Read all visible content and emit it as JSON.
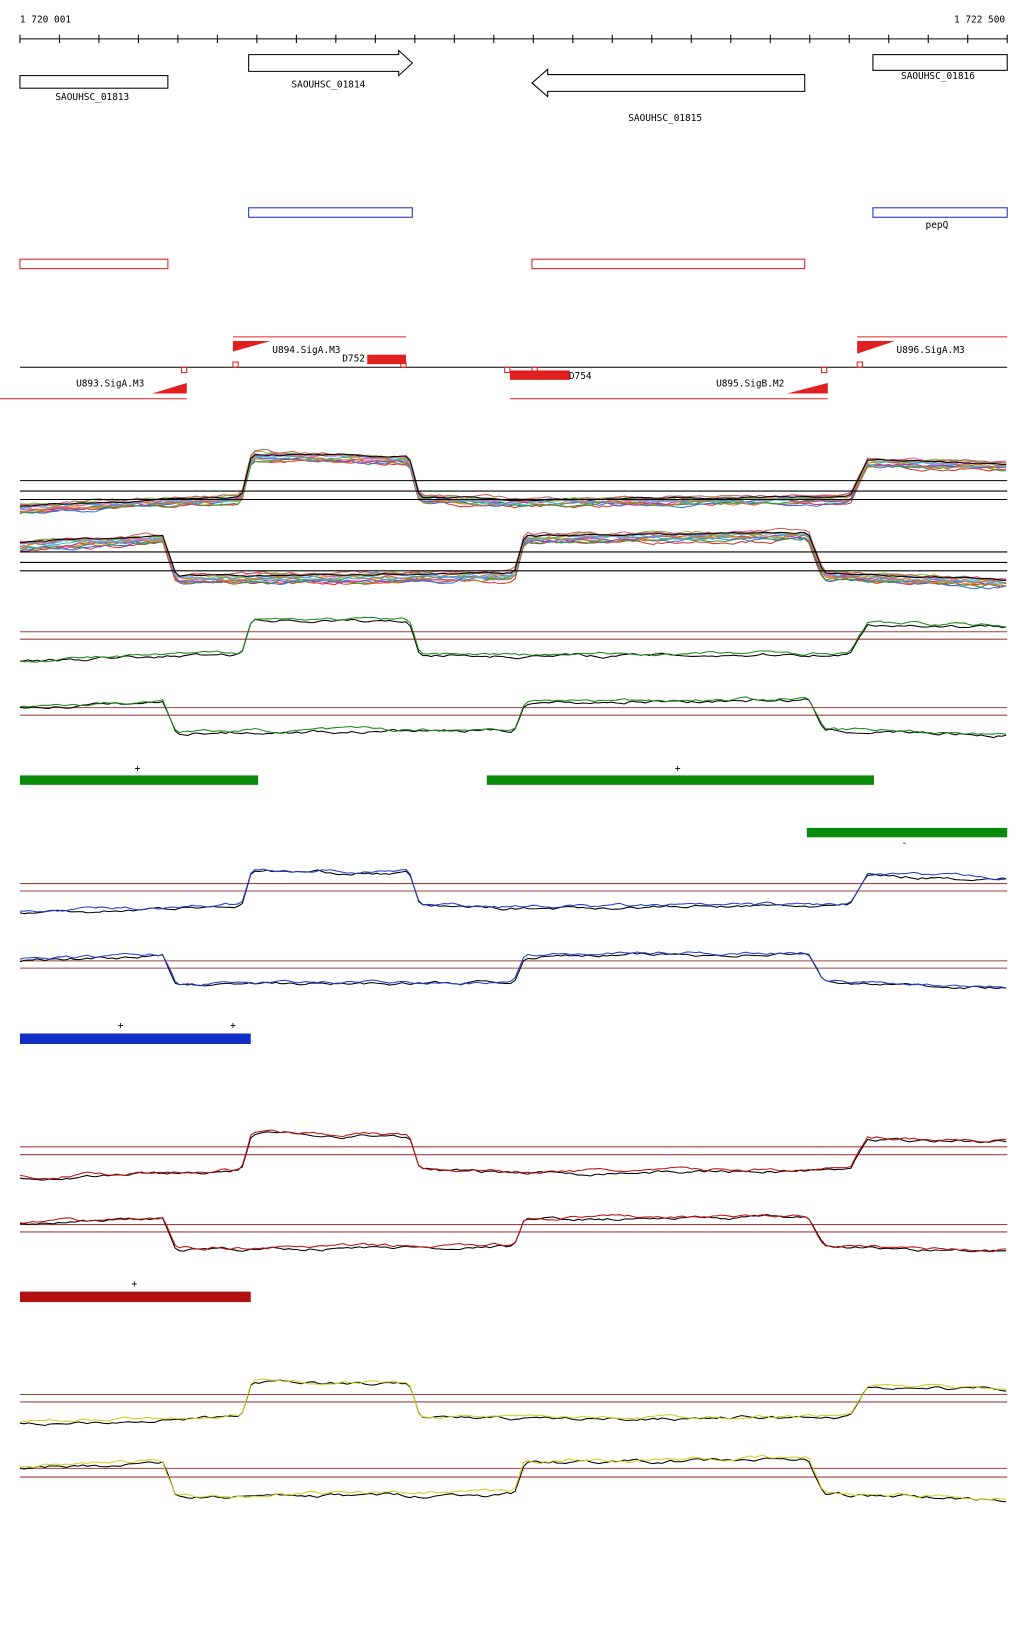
{
  "ruler": {
    "start_label": "1 720 001",
    "end_label": "1 722 500"
  },
  "genes": [
    {
      "label": "SAOUHSC_01813"
    },
    {
      "label": "SAOUHSC_01814"
    },
    {
      "label": "SAOUHSC_01815"
    },
    {
      "label": "SAOUHSC_01816"
    }
  ],
  "gene_names": [
    "pepQ"
  ],
  "promoters": [
    "U894.SigA.M3",
    "U893.SigA.M3",
    "U895.SigB.M2",
    "U896.SigA.M3"
  ],
  "terminators": [
    "D752",
    "D754"
  ],
  "segment_strands": [
    "+",
    "+",
    "-",
    "+",
    "+",
    "+"
  ]
}
